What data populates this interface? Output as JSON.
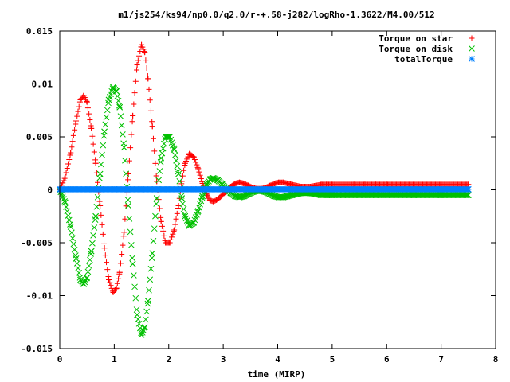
{
  "chart_data": {
    "type": "scatter",
    "title": "m1/js254/ks94/np0.0/q2.0/r-+.58-j282/logRho-1.3622/M4.00/512",
    "xlabel": "time (MIRP)",
    "ylabel": "",
    "xlim": [
      0,
      8
    ],
    "ylim": [
      -0.015,
      0.015
    ],
    "x_ticks": [
      "0",
      "1",
      "2",
      "3",
      "4",
      "5",
      "6",
      "7",
      "8"
    ],
    "y_ticks": [
      "-0.015",
      "-0.01",
      "-0.005",
      "0",
      "0.005",
      "0.01",
      "0.015"
    ],
    "grid": false,
    "legend_position": "top-right",
    "series": [
      {
        "name": "Torque on star",
        "marker": "plus",
        "color": "#ff0000",
        "x": [
          0.0,
          0.1,
          0.2,
          0.3,
          0.38,
          0.44,
          0.5,
          0.58,
          0.66,
          0.74,
          0.82,
          0.9,
          0.98,
          1.04,
          1.1,
          1.18,
          1.26,
          1.34,
          1.42,
          1.5,
          1.56,
          1.62,
          1.7,
          1.78,
          1.86,
          1.94,
          2.02,
          2.1,
          2.18,
          2.24,
          2.3,
          2.38,
          2.46,
          2.54,
          2.62,
          2.7,
          2.76,
          2.82,
          2.9,
          2.98,
          3.06,
          3.14,
          3.22,
          3.3,
          3.38,
          3.46,
          3.54,
          3.62,
          3.7,
          3.78,
          3.86,
          3.94,
          4.02,
          4.1,
          4.18,
          4.26,
          4.34,
          4.42,
          4.5,
          4.6,
          4.7,
          4.8,
          4.9,
          5.0,
          5.2,
          5.4,
          5.6,
          5.8,
          6.0,
          6.5,
          7.0,
          7.5
        ],
        "y": [
          0.0,
          0.0012,
          0.0035,
          0.0065,
          0.0085,
          0.0089,
          0.0083,
          0.0058,
          0.0025,
          -0.0015,
          -0.0055,
          -0.0085,
          -0.0097,
          -0.0093,
          -0.0078,
          -0.004,
          0.0015,
          0.007,
          0.0118,
          0.0137,
          0.013,
          0.0105,
          0.006,
          0.0008,
          -0.003,
          -0.005,
          -0.005,
          -0.0038,
          -0.0015,
          0.0008,
          0.0025,
          0.0034,
          0.0031,
          0.002,
          0.0006,
          -0.0005,
          -0.001,
          -0.0011,
          -0.0009,
          -0.0005,
          -0.0001,
          0.0003,
          0.0006,
          0.0007,
          0.0006,
          0.0004,
          0.0002,
          0.0001,
          0.0001,
          0.0002,
          0.0004,
          0.0006,
          0.0007,
          0.0007,
          0.0006,
          0.0005,
          0.0004,
          0.0003,
          0.0003,
          0.0003,
          0.0004,
          0.0005,
          0.0005,
          0.0005,
          0.0005,
          0.0005,
          0.0005,
          0.0005,
          0.0005,
          0.0005,
          0.0005,
          0.0005
        ]
      },
      {
        "name": "Torque on disk",
        "marker": "cross",
        "color": "#00c000",
        "x": [
          0.0,
          0.1,
          0.2,
          0.3,
          0.38,
          0.44,
          0.5,
          0.58,
          0.66,
          0.74,
          0.82,
          0.9,
          0.98,
          1.04,
          1.1,
          1.18,
          1.26,
          1.34,
          1.42,
          1.5,
          1.56,
          1.62,
          1.7,
          1.78,
          1.86,
          1.94,
          2.02,
          2.1,
          2.18,
          2.24,
          2.3,
          2.38,
          2.46,
          2.54,
          2.62,
          2.7,
          2.76,
          2.82,
          2.9,
          2.98,
          3.06,
          3.14,
          3.22,
          3.3,
          3.38,
          3.46,
          3.54,
          3.62,
          3.7,
          3.78,
          3.86,
          3.94,
          4.02,
          4.1,
          4.18,
          4.26,
          4.34,
          4.42,
          4.5,
          4.6,
          4.7,
          4.8,
          4.9,
          5.0,
          5.2,
          5.4,
          5.6,
          5.8,
          6.0,
          6.5,
          7.0,
          7.5
        ],
        "y": [
          0.0,
          -0.0012,
          -0.0035,
          -0.0065,
          -0.0085,
          -0.0089,
          -0.0083,
          -0.0058,
          -0.0025,
          0.0015,
          0.0055,
          0.0085,
          0.0097,
          0.0093,
          0.0078,
          0.004,
          -0.0015,
          -0.007,
          -0.0118,
          -0.0137,
          -0.013,
          -0.0105,
          -0.006,
          -0.0008,
          0.003,
          0.005,
          0.005,
          0.0038,
          0.0015,
          -0.0008,
          -0.0025,
          -0.0034,
          -0.0031,
          -0.002,
          -0.0006,
          0.0005,
          0.001,
          0.0011,
          0.0009,
          0.0005,
          0.0001,
          -0.0003,
          -0.0006,
          -0.0007,
          -0.0006,
          -0.0004,
          -0.0002,
          -0.0001,
          -0.0001,
          -0.0002,
          -0.0004,
          -0.0006,
          -0.0007,
          -0.0007,
          -0.0006,
          -0.0005,
          -0.0004,
          -0.0003,
          -0.0003,
          -0.0003,
          -0.0004,
          -0.0005,
          -0.0005,
          -0.0005,
          -0.0005,
          -0.0005,
          -0.0005,
          -0.0005,
          -0.0005,
          -0.0005,
          -0.0005,
          -0.0005
        ]
      },
      {
        "name": "totalTorque",
        "marker": "star",
        "color": "#0080ff",
        "x": [
          0.0,
          0.25,
          0.5,
          0.75,
          1.0,
          1.25,
          1.5,
          1.75,
          2.0,
          2.25,
          2.5,
          2.75,
          3.0,
          3.25,
          3.5,
          3.75,
          4.0,
          4.25,
          4.5,
          4.75,
          5.0,
          5.25,
          5.5,
          5.75,
          6.0,
          6.25,
          6.5,
          6.75,
          7.0,
          7.25,
          7.5
        ],
        "y": [
          5e-05,
          5e-05,
          5e-05,
          5e-05,
          5e-05,
          5e-05,
          5e-05,
          5e-05,
          5e-05,
          5e-05,
          5e-05,
          5e-05,
          5e-05,
          5e-05,
          5e-05,
          5e-05,
          5e-05,
          5e-05,
          5e-05,
          5e-05,
          5e-05,
          5e-05,
          5e-05,
          5e-05,
          5e-05,
          5e-05,
          5e-05,
          5e-05,
          5e-05,
          5e-05,
          5e-05
        ]
      }
    ]
  }
}
